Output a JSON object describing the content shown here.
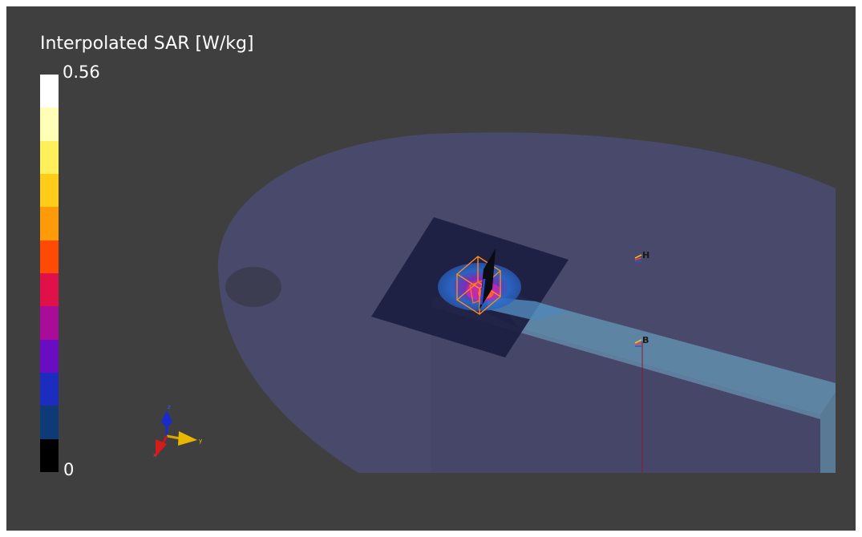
{
  "legend": {
    "title": "Interpolated SAR [W/kg]",
    "max_label": "0.56",
    "min_label": "0",
    "colors": [
      "#ffffff",
      "#ffffb8",
      "#ffef5a",
      "#ffcc1a",
      "#ff9a08",
      "#ff4a05",
      "#e0104a",
      "#aa0c9a",
      "#6a0cc2",
      "#1c2cbf",
      "#0f3a78",
      "#000000"
    ]
  },
  "probes": [
    {
      "id": "probe-h",
      "label": "H"
    },
    {
      "id": "probe-b",
      "label": "B"
    }
  ],
  "axes": {
    "x": "x",
    "y": "y",
    "z": "z"
  },
  "colors": {
    "background": "#3f3f3f",
    "phantom": "#4a4a6e",
    "substrate": "#1e2042",
    "feedline": "#5f88a6",
    "antenna_box": "#ff8a1a"
  }
}
